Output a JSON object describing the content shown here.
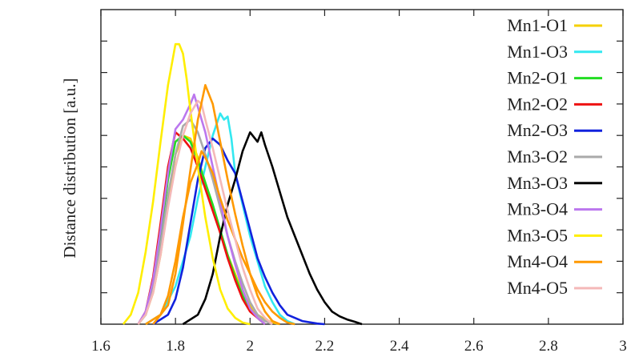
{
  "chart_data": {
    "type": "line",
    "ylabel": "Distance distribution [a.u.]",
    "xlabel": "",
    "xlim": [
      1.6,
      3.0
    ],
    "ylim": [
      0,
      10
    ],
    "x_ticks": [
      1.6,
      1.8,
      2.0,
      2.2,
      2.4,
      2.6,
      2.8,
      3.0
    ],
    "x_tick_labels": [
      "1.6",
      "1.8",
      "2",
      "2.2",
      "2.4",
      "2.6",
      "2.8",
      "3"
    ],
    "y_ticks": [
      1,
      2,
      3,
      4,
      5,
      6,
      7,
      8,
      9
    ],
    "y_tick_labels_shown": false,
    "legend_position": "right",
    "grid": false,
    "series": [
      {
        "name": "Mn1-O1",
        "color": "#f5d000",
        "x": [
          1.7,
          1.72,
          1.74,
          1.76,
          1.78,
          1.8,
          1.82,
          1.84,
          1.86,
          1.88,
          1.9,
          1.92,
          1.94,
          1.96,
          1.98,
          2.0,
          2.02,
          2.04,
          2.06,
          2.08
        ],
        "y": [
          0.0,
          0.3,
          1.0,
          2.2,
          3.8,
          5.4,
          6.0,
          5.9,
          5.3,
          4.5,
          3.7,
          2.9,
          2.2,
          1.6,
          1.0,
          0.6,
          0.3,
          0.15,
          0.05,
          0.0
        ]
      },
      {
        "name": "Mn1-O3",
        "color": "#33e8f0",
        "x": [
          1.72,
          1.76,
          1.8,
          1.84,
          1.86,
          1.88,
          1.9,
          1.92,
          1.93,
          1.94,
          1.95,
          1.96,
          1.98,
          2.0,
          2.02,
          2.04,
          2.06,
          2.08,
          2.1,
          2.12
        ],
        "y": [
          0.0,
          0.3,
          1.2,
          2.8,
          4.0,
          5.0,
          6.0,
          6.7,
          6.5,
          6.6,
          5.9,
          4.8,
          3.8,
          2.8,
          2.0,
          1.2,
          0.7,
          0.3,
          0.1,
          0.0
        ]
      },
      {
        "name": "Mn2-O1",
        "color": "#22dd22",
        "x": [
          1.7,
          1.72,
          1.74,
          1.76,
          1.78,
          1.8,
          1.82,
          1.84,
          1.86,
          1.88,
          1.9,
          1.92,
          1.94,
          1.96,
          1.98,
          2.0,
          2.02,
          2.04
        ],
        "y": [
          0.0,
          0.3,
          1.3,
          2.8,
          4.6,
          5.8,
          6.0,
          5.8,
          5.2,
          4.5,
          3.8,
          3.0,
          2.2,
          1.5,
          0.9,
          0.5,
          0.2,
          0.0
        ]
      },
      {
        "name": "Mn2-O2",
        "color": "#ee1111",
        "x": [
          1.7,
          1.72,
          1.74,
          1.76,
          1.78,
          1.8,
          1.82,
          1.84,
          1.86,
          1.88,
          1.9,
          1.92,
          1.94,
          1.96,
          1.98,
          2.0,
          2.02,
          2.04
        ],
        "y": [
          0.0,
          0.4,
          1.5,
          3.2,
          5.0,
          6.1,
          5.9,
          5.6,
          5.0,
          4.3,
          3.6,
          2.9,
          2.1,
          1.4,
          0.8,
          0.4,
          0.2,
          0.0
        ]
      },
      {
        "name": "Mn2-O3",
        "color": "#1122dd",
        "x": [
          1.74,
          1.78,
          1.8,
          1.82,
          1.84,
          1.86,
          1.88,
          1.9,
          1.92,
          1.94,
          1.96,
          1.98,
          2.0,
          2.02,
          2.04,
          2.06,
          2.08,
          2.1,
          2.14,
          2.18,
          2.2
        ],
        "y": [
          0.0,
          0.3,
          0.8,
          1.8,
          3.2,
          4.6,
          5.6,
          5.9,
          5.7,
          5.2,
          4.8,
          3.9,
          3.0,
          2.1,
          1.5,
          1.0,
          0.6,
          0.3,
          0.1,
          0.02,
          0.0
        ]
      },
      {
        "name": "Mn3-O2",
        "color": "#aaaaaa",
        "x": [
          1.7,
          1.72,
          1.74,
          1.76,
          1.78,
          1.8,
          1.82,
          1.84,
          1.86,
          1.88,
          1.9,
          1.92,
          1.94,
          1.96,
          1.98,
          2.0,
          2.02,
          2.04,
          2.06
        ],
        "y": [
          0.0,
          0.3,
          1.1,
          2.5,
          4.1,
          5.4,
          6.3,
          6.5,
          6.1,
          5.4,
          4.6,
          3.7,
          2.8,
          2.0,
          1.3,
          0.7,
          0.3,
          0.1,
          0.0
        ]
      },
      {
        "name": "Mn3-O3",
        "color": "#000000",
        "x": [
          1.82,
          1.86,
          1.88,
          1.9,
          1.92,
          1.94,
          1.96,
          1.98,
          2.0,
          2.02,
          2.03,
          2.04,
          2.06,
          2.08,
          2.1,
          2.12,
          2.14,
          2.16,
          2.18,
          2.2,
          2.22,
          2.24,
          2.26,
          2.28,
          2.3
        ],
        "y": [
          0.0,
          0.3,
          0.8,
          1.6,
          2.8,
          3.8,
          4.6,
          5.5,
          6.1,
          5.8,
          6.1,
          5.7,
          5.0,
          4.2,
          3.4,
          2.8,
          2.2,
          1.6,
          1.1,
          0.7,
          0.4,
          0.25,
          0.15,
          0.08,
          0.0
        ]
      },
      {
        "name": "Mn3-O4",
        "color": "#bb77ee",
        "x": [
          1.7,
          1.72,
          1.74,
          1.76,
          1.78,
          1.8,
          1.82,
          1.84,
          1.85,
          1.86,
          1.88,
          1.9,
          1.92,
          1.94,
          1.96,
          1.98,
          2.0,
          2.02,
          2.04
        ],
        "y": [
          0.0,
          0.4,
          1.4,
          3.0,
          4.8,
          6.2,
          6.5,
          7.0,
          7.3,
          6.9,
          6.1,
          5.0,
          3.9,
          2.8,
          1.9,
          1.1,
          0.5,
          0.2,
          0.0
        ]
      },
      {
        "name": "Mn3-O5",
        "color": "#ffee00",
        "x": [
          1.66,
          1.68,
          1.7,
          1.72,
          1.74,
          1.76,
          1.78,
          1.8,
          1.81,
          1.82,
          1.83,
          1.84,
          1.86,
          1.88,
          1.9,
          1.92,
          1.94,
          1.96,
          1.98,
          2.0
        ],
        "y": [
          0.0,
          0.3,
          1.0,
          2.3,
          3.9,
          5.8,
          7.6,
          8.9,
          8.9,
          8.6,
          7.8,
          6.8,
          5.0,
          3.4,
          2.1,
          1.1,
          0.5,
          0.2,
          0.05,
          0.0
        ]
      },
      {
        "name": "Mn4-O4",
        "color": "#ff9900",
        "x": [
          1.72,
          1.76,
          1.78,
          1.8,
          1.82,
          1.84,
          1.86,
          1.87,
          1.88,
          1.9,
          1.92,
          1.94,
          1.96,
          1.98,
          2.0,
          2.02,
          2.04,
          2.06,
          2.08,
          2.1,
          2.12
        ],
        "y": [
          0.0,
          0.3,
          0.9,
          2.0,
          3.4,
          4.5,
          5.1,
          5.5,
          5.3,
          4.8,
          4.0,
          3.3,
          2.7,
          2.1,
          1.6,
          1.1,
          0.7,
          0.4,
          0.2,
          0.05,
          0.0
        ]
      },
      {
        "name": "Mn4-O5",
        "color": "#f4b8b8",
        "x": [
          1.7,
          1.72,
          1.74,
          1.76,
          1.78,
          1.8,
          1.82,
          1.84,
          1.86,
          1.87,
          1.88,
          1.9,
          1.92,
          1.94,
          1.96,
          1.98,
          2.0,
          2.02,
          2.04,
          2.06
        ],
        "y": [
          0.0,
          0.3,
          1.0,
          2.2,
          3.7,
          5.0,
          6.0,
          6.7,
          7.1,
          7.0,
          6.5,
          5.6,
          4.6,
          3.6,
          2.7,
          1.8,
          1.1,
          0.5,
          0.2,
          0.0
        ]
      }
    ],
    "orange_second_series": {
      "name": "",
      "color": "#ff9900",
      "x": [
        1.74,
        1.78,
        1.8,
        1.82,
        1.84,
        1.86,
        1.88,
        1.9,
        1.92,
        1.94,
        1.96,
        1.98,
        2.0,
        2.02,
        2.04,
        2.06,
        2.08
      ],
      "y": [
        0.0,
        0.6,
        1.6,
        3.2,
        4.9,
        6.5,
        7.6,
        7.0,
        5.8,
        4.6,
        3.5,
        2.5,
        1.6,
        0.9,
        0.4,
        0.1,
        0.0
      ]
    }
  }
}
